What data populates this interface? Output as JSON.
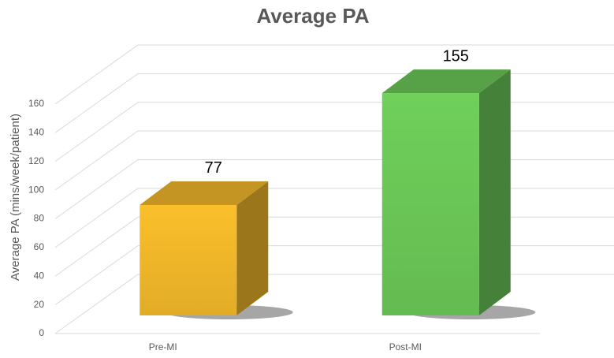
{
  "chart_data": {
    "type": "bar3d",
    "title": "Average PA",
    "y_label": "Average PA (mins/week/patient)",
    "categories": [
      "Pre-MI",
      "Post-MI"
    ],
    "values": [
      77,
      155
    ],
    "colors": [
      "#fbbf2b",
      "#6fd05a"
    ],
    "ylim": [
      0,
      160
    ],
    "yticks": [
      0,
      20,
      40,
      60,
      80,
      100,
      120,
      140,
      160
    ],
    "grid": true
  }
}
